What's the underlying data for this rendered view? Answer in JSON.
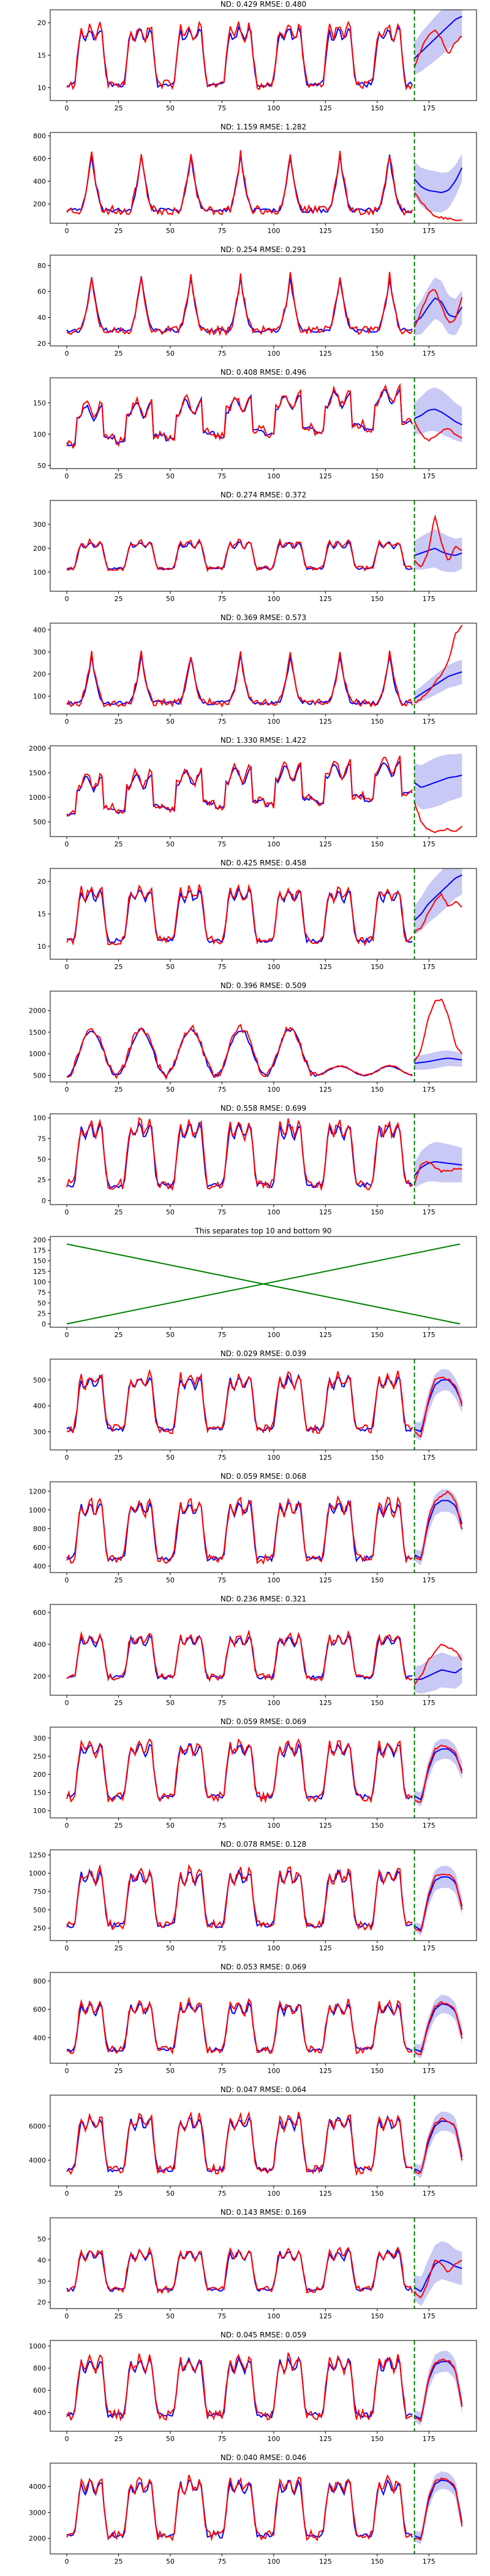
{
  "colors": {
    "target": "#ff0000",
    "median": "#0000ff",
    "band": "#c9c9f5",
    "forecast_start": "#008000",
    "axis": "#000000"
  },
  "chart_data": [
    {
      "type": "line",
      "title": "ND:  0.429 RMSE:  0.480",
      "ylim": [
        8,
        22
      ],
      "yticks": [
        10,
        15,
        20
      ],
      "xticks": [
        0,
        25,
        50,
        75,
        100,
        125,
        150,
        175
      ],
      "xlim": [
        -8,
        198
      ],
      "forecast_start": 168,
      "profile": "sq",
      "seed": 11,
      "base": 10,
      "peak": 19.5,
      "target_tail": [
        13,
        16,
        18,
        19,
        17.5,
        15,
        17,
        18
      ],
      "median_tail": [
        14.5,
        15.5,
        16.5,
        17.5,
        18.5,
        19.5,
        20.5,
        21
      ],
      "band_tail": [
        2.5,
        3,
        3.2,
        3.4,
        3.5,
        3.6,
        3.5,
        3.3
      ]
    },
    {
      "type": "line",
      "title": "ND:  1.159 RMSE:  1.282",
      "ylim": [
        30,
        830
      ],
      "yticks": [
        200,
        400,
        600,
        800
      ],
      "xticks": [
        0,
        25,
        50,
        75,
        100,
        125,
        150,
        175
      ],
      "xlim": [
        -8,
        198
      ],
      "forecast_start": 168,
      "profile": "spk",
      "seed": 23,
      "base": 120,
      "peak": 620,
      "target_tail": [
        300,
        220,
        150,
        90,
        80,
        70,
        60,
        50
      ],
      "median_tail": [
        420,
        350,
        320,
        310,
        300,
        320,
        400,
        520
      ],
      "band_tail": [
        150,
        170,
        180,
        180,
        175,
        160,
        140,
        120
      ]
    },
    {
      "type": "line",
      "title": "ND:  0.254 RMSE:  0.291",
      "ylim": [
        18,
        88
      ],
      "yticks": [
        20,
        40,
        60,
        80
      ],
      "xticks": [
        0,
        25,
        50,
        75,
        100,
        125,
        150,
        175
      ],
      "xlim": [
        -8,
        198
      ],
      "forecast_start": 168,
      "profile": "spk",
      "seed": 37,
      "base": 28,
      "peak": 70,
      "target_tail": [
        32,
        45,
        58,
        62,
        48,
        36,
        38,
        55
      ],
      "median_tail": [
        36,
        40,
        48,
        55,
        52,
        42,
        40,
        48
      ],
      "band_tail": [
        10,
        13,
        15,
        16,
        16,
        15,
        14,
        13
      ]
    },
    {
      "type": "line",
      "title": "ND:  0.408 RMSE:  0.496",
      "ylim": [
        45,
        190
      ],
      "yticks": [
        50,
        100,
        150
      ],
      "xticks": [
        0,
        25,
        50,
        75,
        100,
        125,
        150,
        175
      ],
      "xlim": [
        -8,
        198
      ],
      "forecast_start": 168,
      "profile": "rise",
      "seed": 41,
      "base": 80,
      "peak": 160,
      "target_tail": [
        120,
        100,
        90,
        95,
        105,
        110,
        100,
        95
      ],
      "median_tail": [
        125,
        130,
        138,
        140,
        135,
        128,
        120,
        115
      ],
      "band_tail": [
        25,
        30,
        33,
        35,
        35,
        33,
        30,
        28
      ]
    },
    {
      "type": "line",
      "title": "ND:  0.274 RMSE:  0.372",
      "ylim": [
        20,
        400
      ],
      "yticks": [
        100,
        200,
        300
      ],
      "xticks": [
        0,
        25,
        50,
        75,
        100,
        125,
        150,
        175
      ],
      "xlim": [
        -8,
        198
      ],
      "forecast_start": 168,
      "profile": "sq",
      "seed": 53,
      "base": 110,
      "peak": 230,
      "target_tail": [
        150,
        120,
        180,
        340,
        220,
        140,
        210,
        190
      ],
      "median_tail": [
        170,
        180,
        190,
        200,
        185,
        175,
        170,
        180
      ],
      "band_tail": [
        60,
        70,
        75,
        80,
        80,
        75,
        70,
        65
      ]
    },
    {
      "type": "line",
      "title": "ND:  0.369 RMSE:  0.573",
      "ylim": [
        20,
        430
      ],
      "yticks": [
        100,
        200,
        300,
        400
      ],
      "xticks": [
        0,
        25,
        50,
        75,
        100,
        125,
        150,
        175
      ],
      "xlim": [
        -8,
        198
      ],
      "forecast_start": 168,
      "profile": "spk",
      "seed": 67,
      "base": 60,
      "peak": 280,
      "target_tail": [
        70,
        90,
        120,
        160,
        200,
        260,
        380,
        420
      ],
      "median_tail": [
        90,
        110,
        130,
        150,
        170,
        190,
        200,
        210
      ],
      "band_tail": [
        30,
        35,
        40,
        45,
        50,
        52,
        55,
        55
      ]
    },
    {
      "type": "line",
      "title": "ND:  1.330 RMSE:  1.422",
      "ylim": [
        200,
        2050
      ],
      "yticks": [
        500,
        1000,
        1500,
        2000
      ],
      "xticks": [
        0,
        25,
        50,
        75,
        100,
        125,
        150,
        175
      ],
      "xlim": [
        -8,
        198
      ],
      "forecast_start": 168,
      "profile": "rise",
      "seed": 71,
      "base": 600,
      "peak": 1600,
      "target_tail": [
        900,
        500,
        350,
        300,
        320,
        350,
        300,
        400
      ],
      "median_tail": [
        1300,
        1200,
        1250,
        1300,
        1350,
        1400,
        1420,
        1450
      ],
      "band_tail": [
        400,
        450,
        480,
        500,
        500,
        480,
        460,
        440
      ]
    },
    {
      "type": "line",
      "title": "ND:  0.425 RMSE:  0.458",
      "ylim": [
        8,
        22
      ],
      "yticks": [
        10,
        15,
        20
      ],
      "xticks": [
        0,
        25,
        50,
        75,
        100,
        125,
        150,
        175
      ],
      "xlim": [
        -8,
        198
      ],
      "forecast_start": 168,
      "profile": "sq",
      "seed": 83,
      "base": 10.5,
      "peak": 19,
      "target_tail": [
        12,
        13,
        15,
        17,
        18,
        16,
        17,
        16
      ],
      "median_tail": [
        14,
        15,
        16.5,
        17.5,
        18.5,
        19.5,
        20.5,
        21
      ],
      "band_tail": [
        2.2,
        2.6,
        2.9,
        3.1,
        3.2,
        3.2,
        3.1,
        3
      ]
    },
    {
      "type": "line",
      "title": "ND:  0.396 RMSE:  0.509",
      "ylim": [
        350,
        2450
      ],
      "yticks": [
        500,
        1000,
        1500,
        2000
      ],
      "xticks": [
        0,
        25,
        50,
        75,
        100,
        125,
        150,
        175
      ],
      "xlim": [
        -8,
        198
      ],
      "forecast_start": 168,
      "profile": "wave",
      "seed": 97,
      "base": 500,
      "peak": 1600,
      "target_tail": [
        800,
        1100,
        1800,
        2200,
        2250,
        1900,
        1200,
        1000
      ],
      "median_tail": [
        780,
        800,
        820,
        850,
        880,
        900,
        880,
        860
      ],
      "band_tail": [
        150,
        170,
        180,
        190,
        190,
        180,
        170,
        160
      ]
    },
    {
      "type": "line",
      "title": "ND:  0.558 RMSE:  0.699",
      "ylim": [
        -5,
        105
      ],
      "yticks": [
        0,
        25,
        50,
        75,
        100
      ],
      "xticks": [
        0,
        25,
        50,
        75,
        100,
        125,
        150,
        175
      ],
      "xlim": [
        -8,
        198
      ],
      "forecast_start": 168,
      "profile": "sq",
      "seed": 101,
      "base": 15,
      "peak": 95,
      "target_tail": [
        20,
        45,
        48,
        40,
        35,
        36,
        38,
        37
      ],
      "median_tail": [
        30,
        40,
        45,
        47,
        46,
        45,
        44,
        43
      ],
      "band_tail": [
        15,
        20,
        22,
        24,
        24,
        23,
        22,
        21
      ]
    },
    {
      "type": "line",
      "title": "This separates top 10 and bottom 90",
      "ylim": [
        -8,
        208
      ],
      "yticks": [
        0,
        25,
        50,
        75,
        100,
        125,
        150,
        175,
        200
      ],
      "xticks": [
        0,
        25,
        50,
        75,
        100,
        125,
        150,
        175
      ],
      "xlim": [
        -8,
        198
      ],
      "separator": true
    },
    {
      "type": "line",
      "title": "ND:  0.029 RMSE:  0.039",
      "ylim": [
        230,
        580
      ],
      "yticks": [
        300,
        400,
        500
      ],
      "xticks": [
        0,
        25,
        50,
        75,
        100,
        125,
        150,
        175
      ],
      "xlim": [
        -8,
        198
      ],
      "forecast_start": 168,
      "profile": "sq",
      "seed": 113,
      "base": 300,
      "peak": 520,
      "target_tail": [
        300,
        280,
        420,
        500,
        510,
        505,
        480,
        400
      ],
      "median_tail": [
        310,
        300,
        410,
        480,
        500,
        500,
        470,
        410
      ],
      "band_tail": [
        30,
        35,
        40,
        42,
        42,
        40,
        38,
        36
      ]
    },
    {
      "type": "line",
      "title": "ND:  0.059 RMSE:  0.068",
      "ylim": [
        330,
        1300
      ],
      "yticks": [
        400,
        600,
        800,
        1000,
        1200
      ],
      "xticks": [
        0,
        25,
        50,
        75,
        100,
        125,
        150,
        175
      ],
      "xlim": [
        -8,
        198
      ],
      "forecast_start": 168,
      "profile": "sq",
      "seed": 127,
      "base": 450,
      "peak": 1100,
      "target_tail": [
        500,
        450,
        900,
        1100,
        1150,
        1200,
        1100,
        800
      ],
      "median_tail": [
        520,
        480,
        850,
        1050,
        1100,
        1100,
        1050,
        850
      ],
      "band_tail": [
        60,
        80,
        100,
        110,
        120,
        120,
        110,
        100
      ]
    },
    {
      "type": "line",
      "title": "ND:  0.236 RMSE:  0.321",
      "ylim": [
        80,
        650
      ],
      "yticks": [
        200,
        400,
        600
      ],
      "xticks": [
        0,
        25,
        50,
        75,
        100,
        125,
        150,
        175
      ],
      "xlim": [
        -8,
        198
      ],
      "forecast_start": 168,
      "profile": "sq",
      "seed": 131,
      "base": 180,
      "peak": 460,
      "target_tail": [
        150,
        200,
        300,
        350,
        400,
        380,
        360,
        300
      ],
      "median_tail": [
        180,
        180,
        200,
        220,
        240,
        230,
        220,
        250
      ],
      "band_tail": [
        80,
        90,
        100,
        110,
        110,
        105,
        100,
        95
      ]
    },
    {
      "type": "line",
      "title": "ND:  0.059 RMSE:  0.069",
      "ylim": [
        80,
        330
      ],
      "yticks": [
        100,
        150,
        200,
        250,
        300
      ],
      "xticks": [
        0,
        25,
        50,
        75,
        100,
        125,
        150,
        175
      ],
      "xlim": [
        -8,
        198
      ],
      "forecast_start": 168,
      "profile": "sq",
      "seed": 139,
      "base": 130,
      "peak": 290,
      "target_tail": [
        130,
        120,
        220,
        270,
        280,
        275,
        260,
        200
      ],
      "median_tail": [
        140,
        130,
        210,
        260,
        270,
        270,
        255,
        210
      ],
      "band_tail": [
        15,
        20,
        25,
        28,
        28,
        27,
        26,
        25
      ]
    },
    {
      "type": "line",
      "title": "ND:  0.078 RMSE:  0.128",
      "ylim": [
        80,
        1320
      ],
      "yticks": [
        250,
        500,
        750,
        1000,
        1250
      ],
      "xticks": [
        0,
        25,
        50,
        75,
        100,
        125,
        150,
        175
      ],
      "xlim": [
        -8,
        198
      ],
      "forecast_start": 168,
      "profile": "sq",
      "seed": 149,
      "base": 250,
      "peak": 1050,
      "target_tail": [
        250,
        200,
        700,
        950,
        1000,
        980,
        900,
        500
      ],
      "median_tail": [
        280,
        220,
        650,
        900,
        950,
        950,
        880,
        550
      ],
      "band_tail": [
        60,
        80,
        120,
        140,
        150,
        150,
        140,
        120
      ]
    },
    {
      "type": "line",
      "title": "ND:  0.053 RMSE:  0.069",
      "ylim": [
        220,
        860
      ],
      "yticks": [
        400,
        600,
        800
      ],
      "xticks": [
        0,
        25,
        50,
        75,
        100,
        125,
        150,
        175
      ],
      "xlim": [
        -8,
        198
      ],
      "forecast_start": 168,
      "profile": "sq",
      "seed": 157,
      "base": 300,
      "peak": 650,
      "target_tail": [
        300,
        280,
        500,
        620,
        650,
        640,
        600,
        400
      ],
      "median_tail": [
        320,
        300,
        480,
        600,
        640,
        630,
        590,
        420
      ],
      "band_tail": [
        40,
        50,
        60,
        65,
        65,
        63,
        60,
        58
      ]
    },
    {
      "type": "line",
      "title": "ND:  0.047 RMSE:  0.064",
      "ylim": [
        2500,
        7800
      ],
      "yticks": [
        4000,
        6000
      ],
      "xticks": [
        0,
        25,
        50,
        75,
        100,
        125,
        150,
        175
      ],
      "xlim": [
        -8,
        198
      ],
      "forecast_start": 168,
      "profile": "sq",
      "seed": 163,
      "base": 3300,
      "peak": 6600,
      "target_tail": [
        3400,
        3200,
        5200,
        6200,
        6400,
        6300,
        6000,
        4000
      ],
      "median_tail": [
        3500,
        3300,
        5000,
        6000,
        6300,
        6250,
        6000,
        4200
      ],
      "band_tail": [
        300,
        400,
        500,
        550,
        560,
        550,
        530,
        500
      ]
    },
    {
      "type": "line",
      "title": "ND:  0.143 RMSE:  0.169",
      "ylim": [
        17,
        60
      ],
      "yticks": [
        20,
        30,
        40,
        50
      ],
      "xticks": [
        0,
        25,
        50,
        75,
        100,
        125,
        150,
        175
      ],
      "xlim": [
        -8,
        198
      ],
      "forecast_start": 168,
      "profile": "sq",
      "seed": 173,
      "base": 25,
      "peak": 45,
      "target_tail": [
        25,
        22,
        30,
        40,
        38,
        34,
        38,
        40
      ],
      "median_tail": [
        27,
        25,
        32,
        38,
        40,
        39,
        37,
        36
      ],
      "band_tail": [
        6,
        7,
        8,
        9,
        9,
        9,
        8,
        8
      ]
    },
    {
      "type": "line",
      "title": "ND:  0.045 RMSE:  0.059",
      "ylim": [
        230,
        1050
      ],
      "yticks": [
        400,
        600,
        800,
        1000
      ],
      "xticks": [
        0,
        25,
        50,
        75,
        100,
        125,
        150,
        175
      ],
      "xlim": [
        -8,
        198
      ],
      "forecast_start": 168,
      "profile": "sq",
      "seed": 181,
      "base": 350,
      "peak": 900,
      "target_tail": [
        350,
        320,
        700,
        850,
        880,
        870,
        800,
        450
      ],
      "median_tail": [
        370,
        340,
        680,
        830,
        860,
        860,
        790,
        470
      ],
      "band_tail": [
        50,
        60,
        80,
        90,
        95,
        95,
        90,
        85
      ]
    },
    {
      "type": "line",
      "title": "ND:  0.040 RMSE:  0.046",
      "ylim": [
        1400,
        4900
      ],
      "yticks": [
        2000,
        3000,
        4000
      ],
      "xticks": [
        0,
        25,
        50,
        75,
        100,
        125,
        150,
        175
      ],
      "xlim": [
        -8,
        198
      ],
      "forecast_start": 168,
      "profile": "sq",
      "seed": 191,
      "base": 2000,
      "peak": 4300,
      "target_tail": [
        2000,
        1900,
        3500,
        4200,
        4300,
        4250,
        4000,
        2500
      ],
      "median_tail": [
        2100,
        2000,
        3400,
        4100,
        4250,
        4200,
        3950,
        2600
      ],
      "band_tail": [
        200,
        250,
        300,
        330,
        340,
        335,
        320,
        300
      ]
    }
  ]
}
